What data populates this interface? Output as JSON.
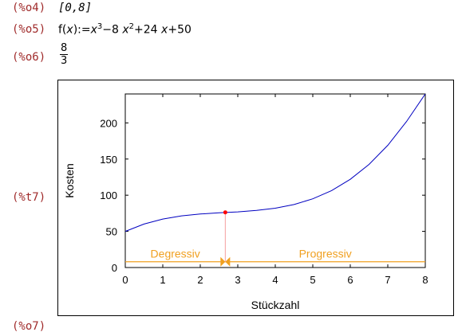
{
  "labels": {
    "o4": "(%o4)",
    "o5": "(%o5)",
    "o6": "(%o6)",
    "t7": "(%t7)",
    "o7": "(%o7)"
  },
  "outputs": {
    "o4_text": "[0,8]",
    "o5_prefix": "f(",
    "o5_var": "x",
    "o5_rest": "):=",
    "o5_term1_base": "x",
    "o5_term1_exp": "3",
    "o5_term2": "−8",
    "o5_term2_base": "x",
    "o5_term2_exp": "2",
    "o5_term3": "+24",
    "o5_term3_var": "x",
    "o5_term4": "+50",
    "o6_num": "8",
    "o6_den": "3"
  },
  "chart_data": {
    "type": "line",
    "function": "x^3-8x^2+24x+50",
    "xlabel": "Stückzahl",
    "ylabel": "Kosten",
    "xlim": [
      0,
      8
    ],
    "ylim": [
      0,
      240
    ],
    "xticks": [
      "0",
      "1",
      "2",
      "3",
      "4",
      "5",
      "6",
      "7",
      "8"
    ],
    "yticks": [
      "0",
      "50",
      "100",
      "150",
      "200"
    ],
    "series": [
      {
        "color": "#0000c0",
        "x": [
          0,
          0.5,
          1,
          1.5,
          2,
          2.5,
          3,
          3.5,
          4,
          4.5,
          5,
          5.5,
          6,
          6.5,
          7,
          7.5,
          8
        ],
        "values": [
          50,
          60.1,
          67,
          71.4,
          74,
          75.6,
          77,
          78.9,
          82,
          87.1,
          95,
          106.4,
          122,
          142.6,
          169,
          201.9,
          242
        ]
      }
    ],
    "inflection_point": {
      "x": 2.667,
      "y": 76.3
    },
    "inflection_color": "#ff0000",
    "regions": [
      {
        "label": "Degressiv",
        "x_from": 0,
        "x_to": 2.667
      },
      {
        "label": "Progressiv",
        "x_from": 2.667,
        "x_to": 8
      }
    ],
    "region_line_y": 8,
    "region_color": "#f0a020",
    "grid": false
  }
}
